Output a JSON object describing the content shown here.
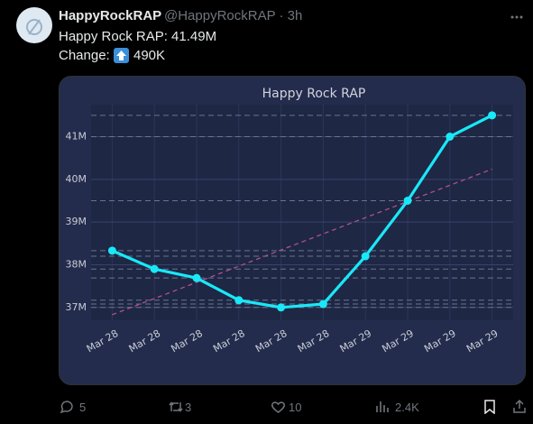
{
  "tweet": {
    "name": "HappyRockRAP",
    "meta": "@HappyRockRAP · 3h",
    "text": "Happy Rock RAP: 41.49M",
    "change_label": "Change:",
    "change_value": "490K",
    "replies": "5",
    "retweets": "3",
    "likes": "10",
    "views": "2.4K"
  },
  "chart_data": {
    "type": "line",
    "title": "Happy Rock RAP",
    "categories": [
      "Mar 28",
      "Mar 28",
      "Mar 28",
      "Mar 28",
      "Mar 28",
      "Mar 28",
      "Mar 29",
      "Mar 29",
      "Mar 29",
      "Mar 29"
    ],
    "series": [
      {
        "color": "#19e8f7",
        "values": [
          38.33,
          37.9,
          37.69,
          37.17,
          37.0,
          37.08,
          38.2,
          39.5,
          41.0,
          41.5
        ]
      }
    ],
    "trendline": {
      "color": "#b0508e",
      "values": [
        36.83,
        40.24
      ]
    },
    "ylim": [
      36.7,
      41.75
    ],
    "yticks": [
      {
        "value": 37,
        "label": "37M"
      },
      {
        "value": 38,
        "label": "38M"
      },
      {
        "value": 39,
        "label": "39M"
      },
      {
        "value": 40,
        "label": "40M"
      },
      {
        "value": 41,
        "label": "41M"
      }
    ],
    "grid": true
  }
}
